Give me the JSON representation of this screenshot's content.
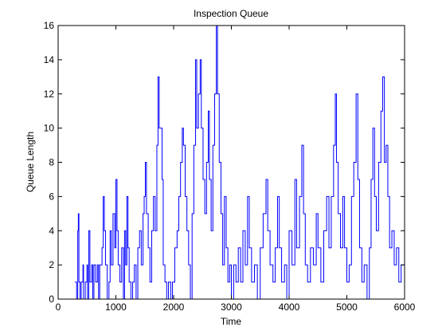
{
  "chart_data": {
    "type": "line",
    "step": true,
    "title": "Inspection Queue",
    "x_label": "Time",
    "y_label": "Queue Length",
    "color": "#0000ff",
    "xlim": [
      0,
      6000
    ],
    "xticks": [
      0,
      1000,
      2000,
      3000,
      4000,
      5000,
      6000
    ],
    "ylim": [
      0,
      16
    ],
    "yticks": [
      0,
      2,
      4,
      6,
      8,
      10,
      12,
      14,
      16
    ],
    "series": [
      {
        "name": "Queue Length",
        "x": [
          290,
          320,
          340,
          350,
          360,
          380,
          400,
          430,
          440,
          470,
          500,
          510,
          530,
          550,
          580,
          600,
          620,
          650,
          680,
          700,
          720,
          760,
          780,
          800,
          820,
          850,
          880,
          900,
          920,
          950,
          980,
          1000,
          1020,
          1040,
          1070,
          1100,
          1130,
          1150,
          1170,
          1190,
          1210,
          1230,
          1260,
          1290,
          1320,
          1350,
          1380,
          1410,
          1440,
          1470,
          1490,
          1510,
          1530,
          1560,
          1590,
          1620,
          1650,
          1680,
          1710,
          1730,
          1750,
          1780,
          1800,
          1820,
          1850,
          1880,
          1910,
          1950,
          1980,
          2020,
          2060,
          2090,
          2120,
          2150,
          2170,
          2200,
          2230,
          2260,
          2290,
          2320,
          2350,
          2380,
          2400,
          2430,
          2460,
          2480,
          2510,
          2540,
          2570,
          2600,
          2620,
          2650,
          2680,
          2710,
          2740,
          2760,
          2790,
          2820,
          2850,
          2880,
          2910,
          2940,
          2970,
          3000,
          3040,
          3080,
          3120,
          3160,
          3200,
          3240,
          3280,
          3310,
          3350,
          3400,
          3450,
          3500,
          3550,
          3600,
          3630,
          3670,
          3720,
          3760,
          3800,
          3830,
          3870,
          3920,
          3960,
          4000,
          4050,
          4100,
          4130,
          4180,
          4220,
          4250,
          4280,
          4320,
          4370,
          4420,
          4470,
          4500,
          4550,
          4600,
          4650,
          4690,
          4730,
          4770,
          4800,
          4820,
          4850,
          4890,
          4930,
          4960,
          5000,
          5040,
          5080,
          5120,
          5160,
          5190,
          5220,
          5260,
          5300,
          5350,
          5390,
          5420,
          5450,
          5480,
          5510,
          5550,
          5590,
          5620,
          5650,
          5680,
          5710,
          5740,
          5780,
          5820,
          5860,
          5900,
          5940,
          6000
        ],
        "values": [
          1,
          0,
          4,
          5,
          1,
          0,
          1,
          2,
          0,
          1,
          2,
          0,
          4,
          1,
          2,
          0,
          2,
          1,
          2,
          0,
          2,
          3,
          6,
          4,
          2,
          0,
          1,
          4,
          2,
          5,
          3,
          7,
          4,
          2,
          1,
          3,
          0,
          4,
          2,
          6,
          3,
          1,
          0,
          1,
          2,
          0,
          3,
          4,
          2,
          5,
          6,
          8,
          5,
          3,
          1,
          4,
          6,
          4,
          9,
          13,
          10,
          10,
          7,
          2,
          1,
          0,
          1,
          0,
          1,
          3,
          4,
          6,
          8,
          10,
          9,
          6,
          4,
          2,
          0,
          5,
          9,
          14,
          10,
          12,
          14,
          10,
          7,
          5,
          8,
          11,
          7,
          4,
          9,
          12,
          16,
          12,
          8,
          5,
          2,
          6,
          3,
          1,
          2,
          0,
          2,
          1,
          3,
          1,
          4,
          2,
          6,
          3,
          1,
          2,
          0,
          3,
          5,
          7,
          4,
          2,
          1,
          3,
          6,
          3,
          1,
          2,
          0,
          4,
          2,
          7,
          3,
          6,
          9,
          5,
          2,
          1,
          3,
          2,
          5,
          3,
          1,
          4,
          6,
          3,
          6,
          9,
          12,
          8,
          5,
          3,
          6,
          3,
          1,
          2,
          6,
          8,
          12,
          7,
          3,
          1,
          2,
          0,
          3,
          7,
          10,
          6,
          4,
          8,
          11,
          13,
          8,
          9,
          6,
          3,
          4,
          2,
          3,
          1,
          2,
          2
        ]
      }
    ]
  }
}
